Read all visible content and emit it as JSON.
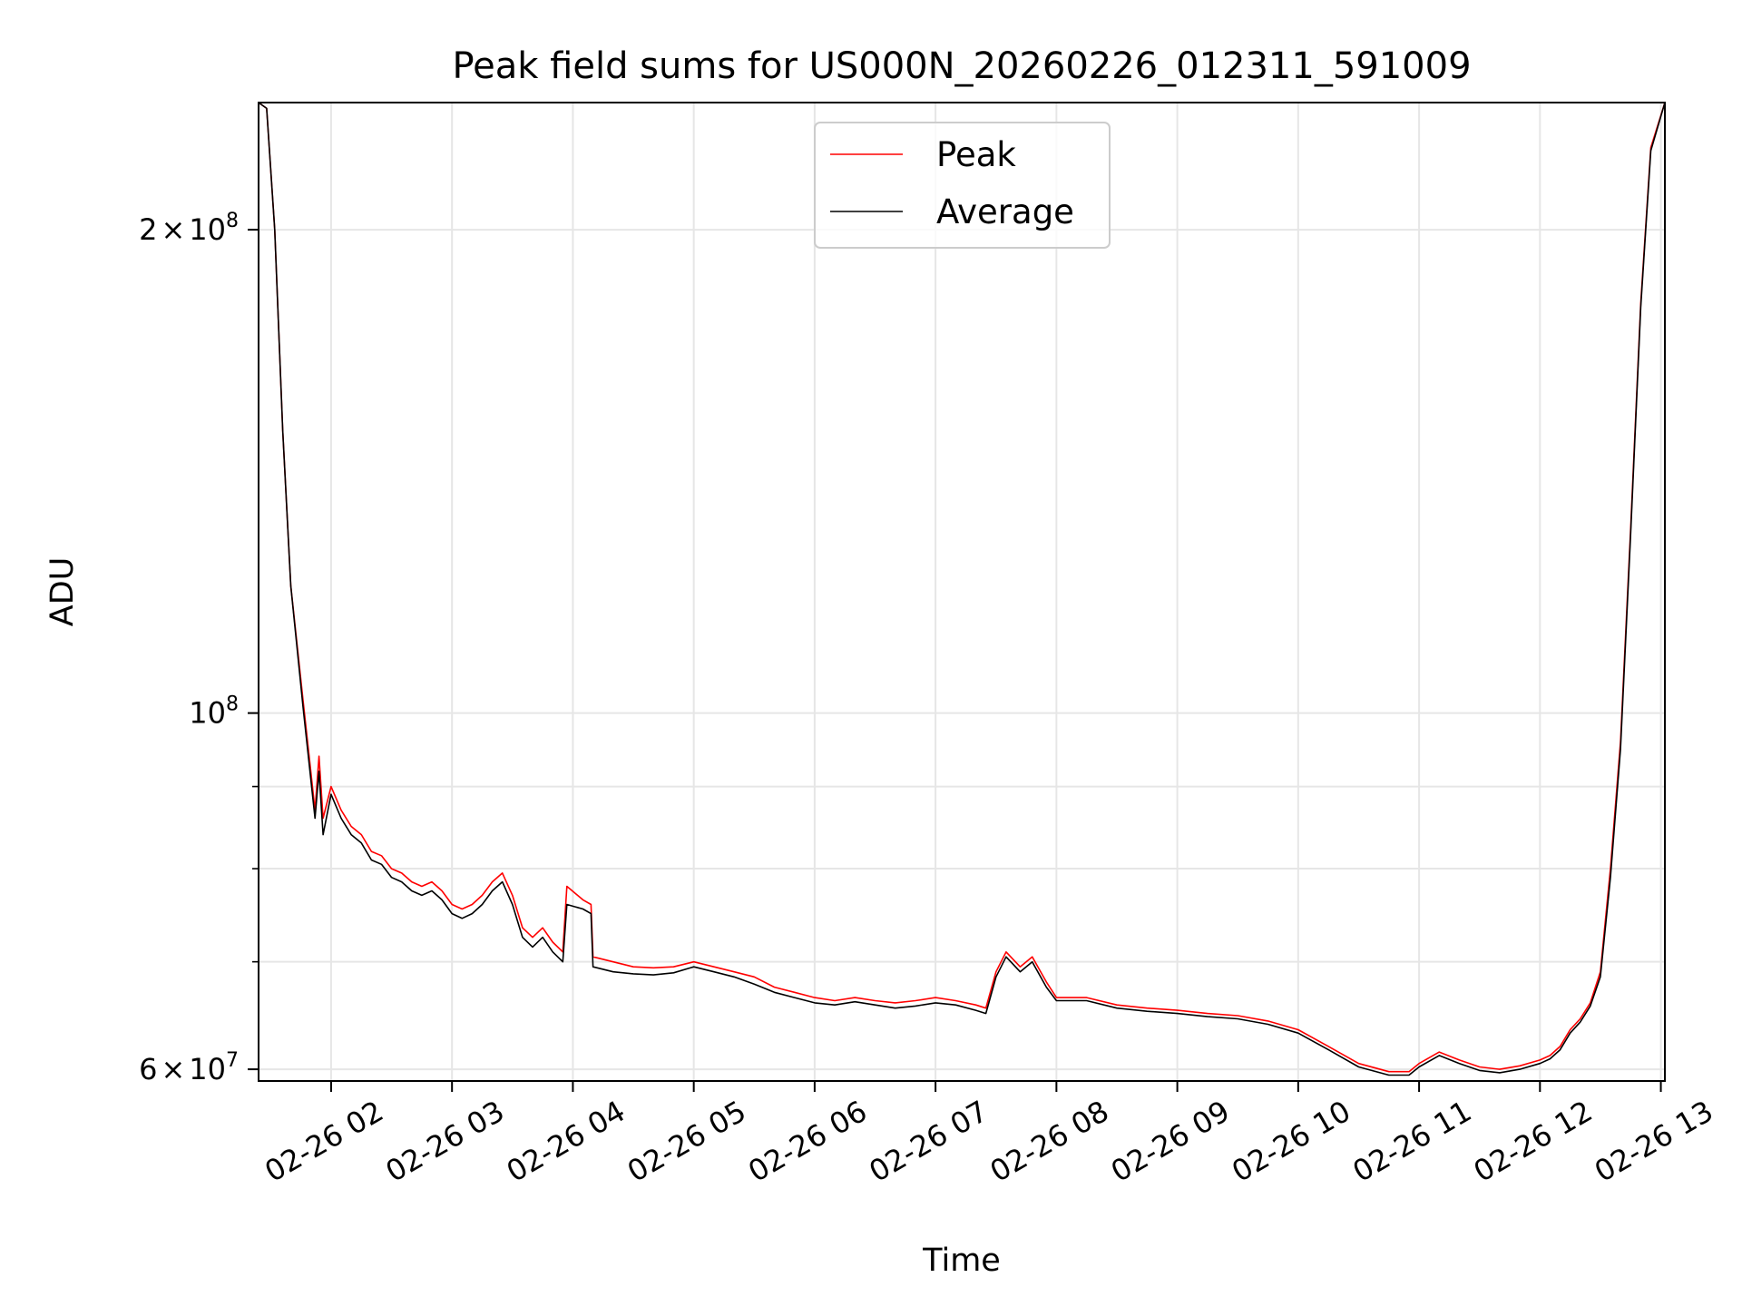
{
  "chart_data": {
    "type": "line",
    "title": "Peak field sums for US000N_20260226_012311_591009",
    "xlabel": "Time",
    "ylabel": "ADU",
    "yscale": "log",
    "ylim": [
      59000000,
      240000000
    ],
    "xlim": [
      "2026-02-26T01:24",
      "2026-02-26T13:02"
    ],
    "grid": true,
    "legend": {
      "placement": "top-center",
      "entries": [
        "Peak",
        "Average"
      ]
    },
    "x_ticks": [
      {
        "t": "2026-02-26T02:00",
        "label": "02-26 02"
      },
      {
        "t": "2026-02-26T03:00",
        "label": "02-26 03"
      },
      {
        "t": "2026-02-26T04:00",
        "label": "02-26 04"
      },
      {
        "t": "2026-02-26T05:00",
        "label": "02-26 05"
      },
      {
        "t": "2026-02-26T06:00",
        "label": "02-26 06"
      },
      {
        "t": "2026-02-26T07:00",
        "label": "02-26 07"
      },
      {
        "t": "2026-02-26T08:00",
        "label": "02-26 08"
      },
      {
        "t": "2026-02-26T09:00",
        "label": "02-26 09"
      },
      {
        "t": "2026-02-26T10:00",
        "label": "02-26 10"
      },
      {
        "t": "2026-02-26T11:00",
        "label": "02-26 11"
      },
      {
        "t": "2026-02-26T12:00",
        "label": "02-26 12"
      },
      {
        "t": "2026-02-26T13:00",
        "label": "02-26 13"
      }
    ],
    "y_major_ticks": [
      {
        "v": 60000000,
        "base": "6",
        "times": "×",
        "pow_base": "10",
        "exp": "7"
      },
      {
        "v": 100000000,
        "base": "",
        "times": "",
        "pow_base": "10",
        "exp": "8"
      },
      {
        "v": 200000000,
        "base": "2",
        "times": "×",
        "pow_base": "10",
        "exp": "8"
      }
    ],
    "y_minor_ticks": [
      70000000,
      80000000,
      90000000
    ],
    "series": [
      {
        "name": "Peak",
        "color": "#ff0000",
        "points": [
          [
            "2026-02-26T01:24",
            240000000
          ],
          [
            "2026-02-26T01:28",
            238000000
          ],
          [
            "2026-02-26T01:32",
            200000000
          ],
          [
            "2026-02-26T01:36",
            150000000
          ],
          [
            "2026-02-26T01:40",
            120000000
          ],
          [
            "2026-02-26T01:46",
            102000000
          ],
          [
            "2026-02-26T01:52",
            87000000
          ],
          [
            "2026-02-26T01:54",
            94000000
          ],
          [
            "2026-02-26T01:56",
            86000000
          ],
          [
            "2026-02-26T02:00",
            90000000
          ],
          [
            "2026-02-26T02:05",
            87000000
          ],
          [
            "2026-02-26T02:10",
            85000000
          ],
          [
            "2026-02-26T02:15",
            84000000
          ],
          [
            "2026-02-26T02:20",
            82000000
          ],
          [
            "2026-02-26T02:25",
            81500000
          ],
          [
            "2026-02-26T02:30",
            80000000
          ],
          [
            "2026-02-26T02:35",
            79500000
          ],
          [
            "2026-02-26T02:40",
            78500000
          ],
          [
            "2026-02-26T02:45",
            78000000
          ],
          [
            "2026-02-26T02:50",
            78500000
          ],
          [
            "2026-02-26T02:55",
            77500000
          ],
          [
            "2026-02-26T03:00",
            76000000
          ],
          [
            "2026-02-26T03:05",
            75500000
          ],
          [
            "2026-02-26T03:10",
            76000000
          ],
          [
            "2026-02-26T03:15",
            77000000
          ],
          [
            "2026-02-26T03:20",
            78500000
          ],
          [
            "2026-02-26T03:25",
            79500000
          ],
          [
            "2026-02-26T03:30",
            77000000
          ],
          [
            "2026-02-26T03:35",
            73500000
          ],
          [
            "2026-02-26T03:40",
            72500000
          ],
          [
            "2026-02-26T03:45",
            73500000
          ],
          [
            "2026-02-26T03:50",
            72000000
          ],
          [
            "2026-02-26T03:55",
            71000000
          ],
          [
            "2026-02-26T03:57",
            78000000
          ],
          [
            "2026-02-26T04:05",
            76500000
          ],
          [
            "2026-02-26T04:09",
            76000000
          ],
          [
            "2026-02-26T04:10",
            70500000
          ],
          [
            "2026-02-26T04:20",
            70000000
          ],
          [
            "2026-02-26T04:30",
            69500000
          ],
          [
            "2026-02-26T04:40",
            69400000
          ],
          [
            "2026-02-26T04:50",
            69500000
          ],
          [
            "2026-02-26T05:00",
            70000000
          ],
          [
            "2026-02-26T05:10",
            69500000
          ],
          [
            "2026-02-26T05:20",
            69000000
          ],
          [
            "2026-02-26T05:30",
            68500000
          ],
          [
            "2026-02-26T05:40",
            67500000
          ],
          [
            "2026-02-26T05:50",
            67000000
          ],
          [
            "2026-02-26T06:00",
            66500000
          ],
          [
            "2026-02-26T06:10",
            66200000
          ],
          [
            "2026-02-26T06:20",
            66500000
          ],
          [
            "2026-02-26T06:30",
            66200000
          ],
          [
            "2026-02-26T06:40",
            66000000
          ],
          [
            "2026-02-26T06:50",
            66200000
          ],
          [
            "2026-02-26T07:00",
            66500000
          ],
          [
            "2026-02-26T07:10",
            66200000
          ],
          [
            "2026-02-26T07:20",
            65800000
          ],
          [
            "2026-02-26T07:25",
            65500000
          ],
          [
            "2026-02-26T07:30",
            69000000
          ],
          [
            "2026-02-26T07:35",
            71000000
          ],
          [
            "2026-02-26T07:42",
            69500000
          ],
          [
            "2026-02-26T07:48",
            70500000
          ],
          [
            "2026-02-26T07:55",
            68000000
          ],
          [
            "2026-02-26T08:00",
            66500000
          ],
          [
            "2026-02-26T08:15",
            66500000
          ],
          [
            "2026-02-26T08:30",
            65800000
          ],
          [
            "2026-02-26T08:45",
            65500000
          ],
          [
            "2026-02-26T09:00",
            65300000
          ],
          [
            "2026-02-26T09:15",
            65000000
          ],
          [
            "2026-02-26T09:30",
            64800000
          ],
          [
            "2026-02-26T09:45",
            64300000
          ],
          [
            "2026-02-26T10:00",
            63500000
          ],
          [
            "2026-02-26T10:15",
            62000000
          ],
          [
            "2026-02-26T10:30",
            60500000
          ],
          [
            "2026-02-26T10:45",
            59800000
          ],
          [
            "2026-02-26T10:55",
            59800000
          ],
          [
            "2026-02-26T11:00",
            60500000
          ],
          [
            "2026-02-26T11:10",
            61500000
          ],
          [
            "2026-02-26T11:20",
            60800000
          ],
          [
            "2026-02-26T11:30",
            60200000
          ],
          [
            "2026-02-26T11:40",
            60000000
          ],
          [
            "2026-02-26T11:50",
            60300000
          ],
          [
            "2026-02-26T12:00",
            60800000
          ],
          [
            "2026-02-26T12:05",
            61200000
          ],
          [
            "2026-02-26T12:10",
            62000000
          ],
          [
            "2026-02-26T12:15",
            63500000
          ],
          [
            "2026-02-26T12:20",
            64500000
          ],
          [
            "2026-02-26T12:25",
            66000000
          ],
          [
            "2026-02-26T12:30",
            69000000
          ],
          [
            "2026-02-26T12:35",
            80000000
          ],
          [
            "2026-02-26T12:40",
            96000000
          ],
          [
            "2026-02-26T12:45",
            130000000
          ],
          [
            "2026-02-26T12:50",
            180000000
          ],
          [
            "2026-02-26T12:55",
            225000000
          ],
          [
            "2026-02-26T13:02",
            240000000
          ]
        ]
      },
      {
        "name": "Average",
        "color": "#000000",
        "points": [
          [
            "2026-02-26T01:24",
            240000000
          ],
          [
            "2026-02-26T01:28",
            238000000
          ],
          [
            "2026-02-26T01:32",
            200000000
          ],
          [
            "2026-02-26T01:36",
            150000000
          ],
          [
            "2026-02-26T01:40",
            120000000
          ],
          [
            "2026-02-26T01:46",
            101000000
          ],
          [
            "2026-02-26T01:52",
            86000000
          ],
          [
            "2026-02-26T01:54",
            92000000
          ],
          [
            "2026-02-26T01:56",
            84000000
          ],
          [
            "2026-02-26T02:00",
            89000000
          ],
          [
            "2026-02-26T02:05",
            86000000
          ],
          [
            "2026-02-26T02:10",
            84000000
          ],
          [
            "2026-02-26T02:15",
            83000000
          ],
          [
            "2026-02-26T02:20",
            81000000
          ],
          [
            "2026-02-26T02:25",
            80500000
          ],
          [
            "2026-02-26T02:30",
            79000000
          ],
          [
            "2026-02-26T02:35",
            78500000
          ],
          [
            "2026-02-26T02:40",
            77500000
          ],
          [
            "2026-02-26T02:45",
            77000000
          ],
          [
            "2026-02-26T02:50",
            77500000
          ],
          [
            "2026-02-26T02:55",
            76500000
          ],
          [
            "2026-02-26T03:00",
            75000000
          ],
          [
            "2026-02-26T03:05",
            74500000
          ],
          [
            "2026-02-26T03:10",
            75000000
          ],
          [
            "2026-02-26T03:15",
            76000000
          ],
          [
            "2026-02-26T03:20",
            77500000
          ],
          [
            "2026-02-26T03:25",
            78500000
          ],
          [
            "2026-02-26T03:30",
            76000000
          ],
          [
            "2026-02-26T03:35",
            72500000
          ],
          [
            "2026-02-26T03:40",
            71500000
          ],
          [
            "2026-02-26T03:45",
            72500000
          ],
          [
            "2026-02-26T03:50",
            71000000
          ],
          [
            "2026-02-26T03:55",
            70000000
          ],
          [
            "2026-02-26T03:57",
            76000000
          ],
          [
            "2026-02-26T04:05",
            75500000
          ],
          [
            "2026-02-26T04:09",
            75000000
          ],
          [
            "2026-02-26T04:10",
            69500000
          ],
          [
            "2026-02-26T04:20",
            69000000
          ],
          [
            "2026-02-26T04:30",
            68800000
          ],
          [
            "2026-02-26T04:40",
            68700000
          ],
          [
            "2026-02-26T04:50",
            68900000
          ],
          [
            "2026-02-26T05:00",
            69500000
          ],
          [
            "2026-02-26T05:10",
            69000000
          ],
          [
            "2026-02-26T05:20",
            68500000
          ],
          [
            "2026-02-26T05:30",
            67800000
          ],
          [
            "2026-02-26T05:40",
            67000000
          ],
          [
            "2026-02-26T05:50",
            66500000
          ],
          [
            "2026-02-26T06:00",
            66000000
          ],
          [
            "2026-02-26T06:10",
            65800000
          ],
          [
            "2026-02-26T06:20",
            66100000
          ],
          [
            "2026-02-26T06:30",
            65800000
          ],
          [
            "2026-02-26T06:40",
            65500000
          ],
          [
            "2026-02-26T06:50",
            65700000
          ],
          [
            "2026-02-26T07:00",
            66000000
          ],
          [
            "2026-02-26T07:10",
            65800000
          ],
          [
            "2026-02-26T07:20",
            65300000
          ],
          [
            "2026-02-26T07:25",
            65000000
          ],
          [
            "2026-02-26T07:30",
            68500000
          ],
          [
            "2026-02-26T07:35",
            70500000
          ],
          [
            "2026-02-26T07:42",
            69000000
          ],
          [
            "2026-02-26T07:48",
            70000000
          ],
          [
            "2026-02-26T07:55",
            67500000
          ],
          [
            "2026-02-26T08:00",
            66200000
          ],
          [
            "2026-02-26T08:15",
            66200000
          ],
          [
            "2026-02-26T08:30",
            65500000
          ],
          [
            "2026-02-26T08:45",
            65200000
          ],
          [
            "2026-02-26T09:00",
            65000000
          ],
          [
            "2026-02-26T09:15",
            64700000
          ],
          [
            "2026-02-26T09:30",
            64500000
          ],
          [
            "2026-02-26T09:45",
            64000000
          ],
          [
            "2026-02-26T10:00",
            63200000
          ],
          [
            "2026-02-26T10:15",
            61700000
          ],
          [
            "2026-02-26T10:30",
            60200000
          ],
          [
            "2026-02-26T10:45",
            59500000
          ],
          [
            "2026-02-26T10:55",
            59500000
          ],
          [
            "2026-02-26T11:00",
            60200000
          ],
          [
            "2026-02-26T11:10",
            61200000
          ],
          [
            "2026-02-26T11:20",
            60500000
          ],
          [
            "2026-02-26T11:30",
            59900000
          ],
          [
            "2026-02-26T11:40",
            59700000
          ],
          [
            "2026-02-26T11:50",
            60000000
          ],
          [
            "2026-02-26T12:00",
            60500000
          ],
          [
            "2026-02-26T12:05",
            60900000
          ],
          [
            "2026-02-26T12:10",
            61700000
          ],
          [
            "2026-02-26T12:15",
            63200000
          ],
          [
            "2026-02-26T12:20",
            64200000
          ],
          [
            "2026-02-26T12:25",
            65700000
          ],
          [
            "2026-02-26T12:30",
            68500000
          ],
          [
            "2026-02-26T12:35",
            79000000
          ],
          [
            "2026-02-26T12:40",
            95000000
          ],
          [
            "2026-02-26T12:45",
            129000000
          ],
          [
            "2026-02-26T12:50",
            179000000
          ],
          [
            "2026-02-26T12:55",
            224000000
          ],
          [
            "2026-02-26T13:02",
            240000000
          ]
        ]
      }
    ]
  }
}
